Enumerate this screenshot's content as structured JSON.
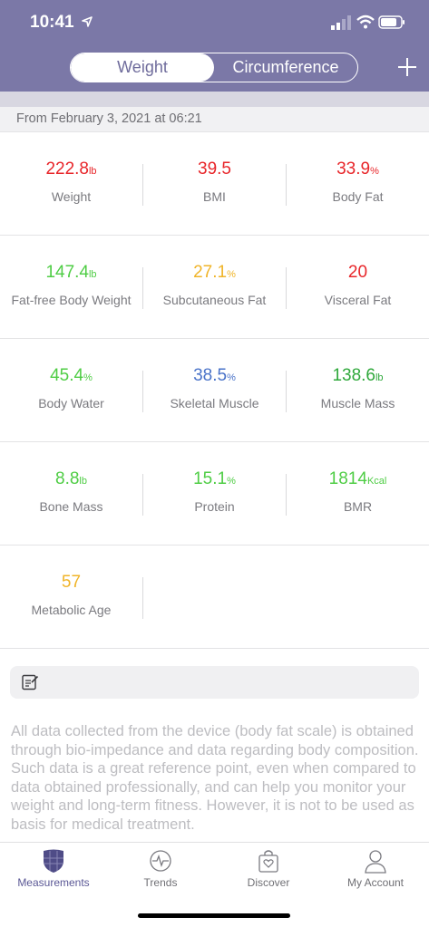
{
  "status": {
    "time": "10:41"
  },
  "header": {
    "tabs": [
      {
        "label": "Weight",
        "active": true
      },
      {
        "label": "Circumference",
        "active": false
      }
    ],
    "add_icon": "plus-icon"
  },
  "date_label": "From February 3, 2021 at 06:21",
  "colors": {
    "red": "#e8262a",
    "green": "#4fcd45",
    "yellow": "#f0b428",
    "blue": "#4a73c9",
    "header": "#7b78a7"
  },
  "metrics": [
    {
      "value": "222.8",
      "unit": "lb",
      "label": "Weight",
      "color": "#e8262a"
    },
    {
      "value": "39.5",
      "unit": "",
      "label": "BMI",
      "color": "#e8262a"
    },
    {
      "value": "33.9",
      "unit": "%",
      "label": "Body Fat",
      "color": "#e8262a"
    },
    {
      "value": "147.4",
      "unit": "lb",
      "label": "Fat-free Body Weight",
      "color": "#4fcd45"
    },
    {
      "value": "27.1",
      "unit": "%",
      "label": "Subcutaneous Fat",
      "color": "#f0b428"
    },
    {
      "value": "20",
      "unit": "",
      "label": "Visceral Fat",
      "color": "#e8262a"
    },
    {
      "value": "45.4",
      "unit": "%",
      "label": "Body Water",
      "color": "#4fcd45"
    },
    {
      "value": "38.5",
      "unit": "%",
      "label": "Skeletal Muscle",
      "color": "#4a73c9"
    },
    {
      "value": "138.6",
      "unit": "lb",
      "label": "Muscle Mass",
      "color": "#2ea83a"
    },
    {
      "value": "8.8",
      "unit": "lb",
      "label": "Bone Mass",
      "color": "#4fcd45"
    },
    {
      "value": "15.1",
      "unit": "%",
      "label": "Protein",
      "color": "#4fcd45"
    },
    {
      "value": "1814",
      "unit": "Kcal",
      "label": "BMR",
      "color": "#4fcd45"
    },
    {
      "value": "57",
      "unit": "",
      "label": "Metabolic Age",
      "color": "#f0b428"
    }
  ],
  "note_icon": "edit-note-icon",
  "disclaimer": "All data collected from the device (body fat scale) is obtained through bio-impedance and data regarding body composition. Such data is a great reference point, even when compared to data obtained professionally, and can help you monitor your weight and long-term fitness. However, it is not to be used as basis for medical treatment.",
  "tabbar": [
    {
      "label": "Measurements",
      "icon": "shield-icon",
      "active": true
    },
    {
      "label": "Trends",
      "icon": "heartbeat-icon",
      "active": false
    },
    {
      "label": "Discover",
      "icon": "bag-icon",
      "active": false
    },
    {
      "label": "My Account",
      "icon": "person-icon",
      "active": false
    }
  ]
}
